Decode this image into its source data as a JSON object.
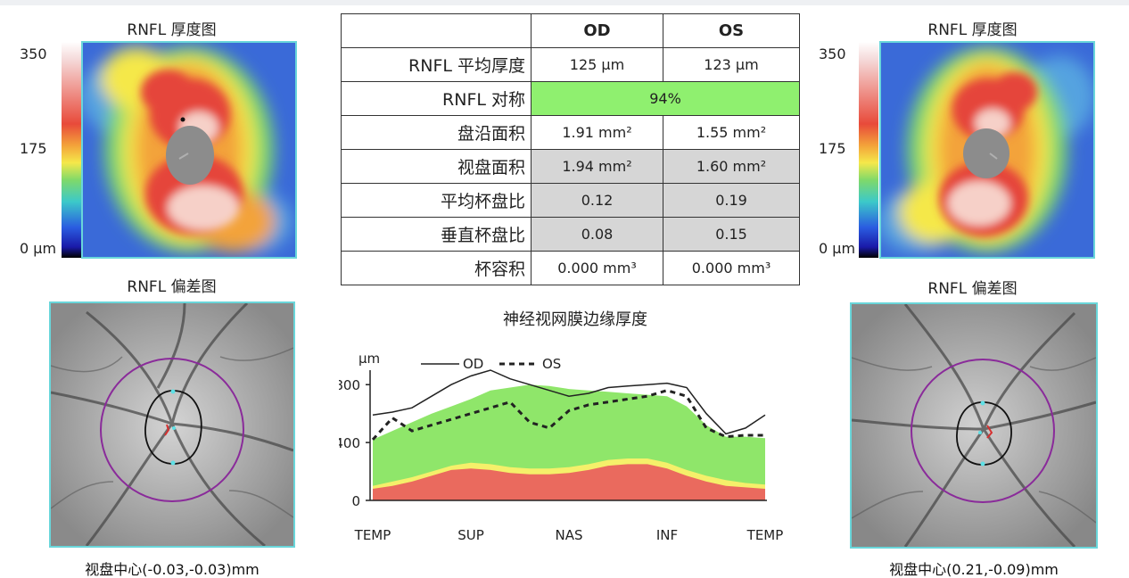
{
  "od": {
    "thickness_title": "RNFL 厚度图",
    "deviation_title": "RNFL 偏差图",
    "scale_max": "350",
    "scale_mid": "175",
    "scale_min": "0",
    "scale_unit": "μm",
    "disc_center": "视盘中心(-0.03,-0.03)mm"
  },
  "os": {
    "thickness_title": "RNFL 厚度图",
    "deviation_title": "RNFL 偏差图",
    "scale_max": "350",
    "scale_mid": "175",
    "scale_min": "0",
    "scale_unit": "μm",
    "disc_center": "视盘中心(0.21,-0.09)mm"
  },
  "table": {
    "headers": [
      "",
      "OD",
      "OS"
    ],
    "rows": [
      {
        "label": "RNFL 平均厚度",
        "od": "125 μm",
        "os": "123 μm"
      },
      {
        "label": "RNFL 对称",
        "combined": "94%"
      },
      {
        "label": "盘沿面积",
        "od": "1.91 mm²",
        "os": "1.55 mm²"
      },
      {
        "label": "视盘面积",
        "od": "1.94 mm²",
        "os": "1.60 mm²"
      },
      {
        "label": "平均杯盘比",
        "od": "0.12",
        "os": "0.19"
      },
      {
        "label": "垂直杯盘比",
        "od": "0.08",
        "os": "0.15"
      },
      {
        "label": "杯容积",
        "od": "0.000 mm³",
        "os": "0.000 mm³"
      }
    ]
  },
  "colors": {
    "normal_band": "#8fe66a",
    "borderline_band": "#f5f06a",
    "abnormal_band": "#ea6a5e",
    "symmetry_fill": "#8ff06f",
    "map_border": "#69d6da",
    "circle": "#8a2b9a"
  },
  "chart_data": {
    "type": "line",
    "title": "神经视网膜边缘厚度",
    "ylabel": "μm",
    "xlabel": "",
    "ylim": [
      0,
      900
    ],
    "yticks": [
      0,
      400,
      800
    ],
    "xticks": [
      "TEMP",
      "SUP",
      "NAS",
      "INF",
      "TEMP"
    ],
    "legend_position": "top-left",
    "x": [
      0,
      0.05,
      0.1,
      0.15,
      0.2,
      0.25,
      0.3,
      0.35,
      0.4,
      0.45,
      0.5,
      0.55,
      0.6,
      0.65,
      0.7,
      0.75,
      0.8,
      0.85,
      0.9,
      0.95,
      1.0
    ],
    "series": [
      {
        "name": "OD",
        "style": "solid",
        "values": [
          590,
          610,
          640,
          720,
          800,
          860,
          900,
          840,
          800,
          760,
          720,
          740,
          780,
          790,
          800,
          810,
          780,
          600,
          460,
          500,
          590
        ]
      },
      {
        "name": "OS",
        "style": "dashed",
        "values": [
          420,
          570,
          480,
          520,
          560,
          600,
          640,
          680,
          540,
          500,
          620,
          660,
          680,
          700,
          720,
          760,
          720,
          500,
          440,
          450,
          450
        ]
      }
    ],
    "bands": {
      "normal_upper": [
        420,
        480,
        540,
        600,
        650,
        700,
        760,
        780,
        800,
        790,
        770,
        760,
        750,
        740,
        730,
        720,
        650,
        520,
        440,
        440,
        430
      ],
      "borderline_upper": [
        100,
        130,
        160,
        200,
        240,
        260,
        250,
        230,
        220,
        220,
        230,
        250,
        280,
        290,
        290,
        260,
        210,
        170,
        140,
        120,
        110
      ],
      "abnormal_upper": [
        80,
        100,
        130,
        170,
        210,
        220,
        210,
        190,
        180,
        180,
        190,
        210,
        240,
        250,
        250,
        220,
        170,
        130,
        100,
        90,
        80
      ]
    }
  }
}
